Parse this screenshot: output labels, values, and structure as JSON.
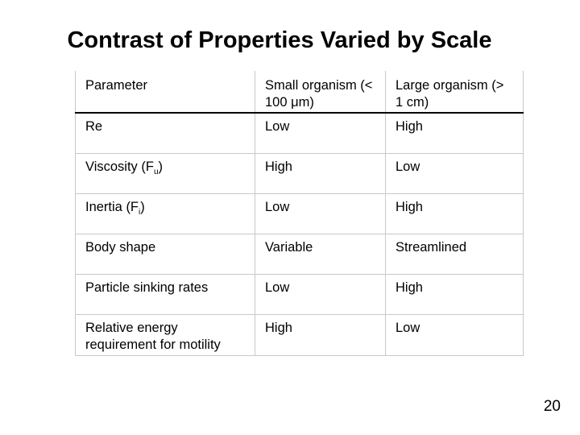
{
  "slide": {
    "title": "Contrast of Properties Varied by Scale",
    "page_number": "20"
  },
  "table": {
    "headers": [
      "Parameter",
      "Small organism (< 100 μm)",
      "Large organism (> 1 cm)"
    ],
    "rows": [
      {
        "parameter": "Re",
        "parameter_sub": "",
        "parameter_suffix": "",
        "small": "Low",
        "large": "High"
      },
      {
        "parameter": "Viscosity (F",
        "parameter_sub": "u",
        "parameter_suffix": ")",
        "small": "High",
        "large": "Low"
      },
      {
        "parameter": "Inertia (F",
        "parameter_sub": "i",
        "parameter_suffix": ")",
        "small": "Low",
        "large": "High"
      },
      {
        "parameter": "Body shape",
        "parameter_sub": "",
        "parameter_suffix": "",
        "small": "Variable",
        "large": "Streamlined"
      },
      {
        "parameter": "Particle sinking rates",
        "parameter_sub": "",
        "parameter_suffix": "",
        "small": "Low",
        "large": "High"
      },
      {
        "parameter": "Relative energy requirement for motility",
        "parameter_sub": "",
        "parameter_suffix": "",
        "small": "High",
        "large": "Low"
      }
    ]
  }
}
